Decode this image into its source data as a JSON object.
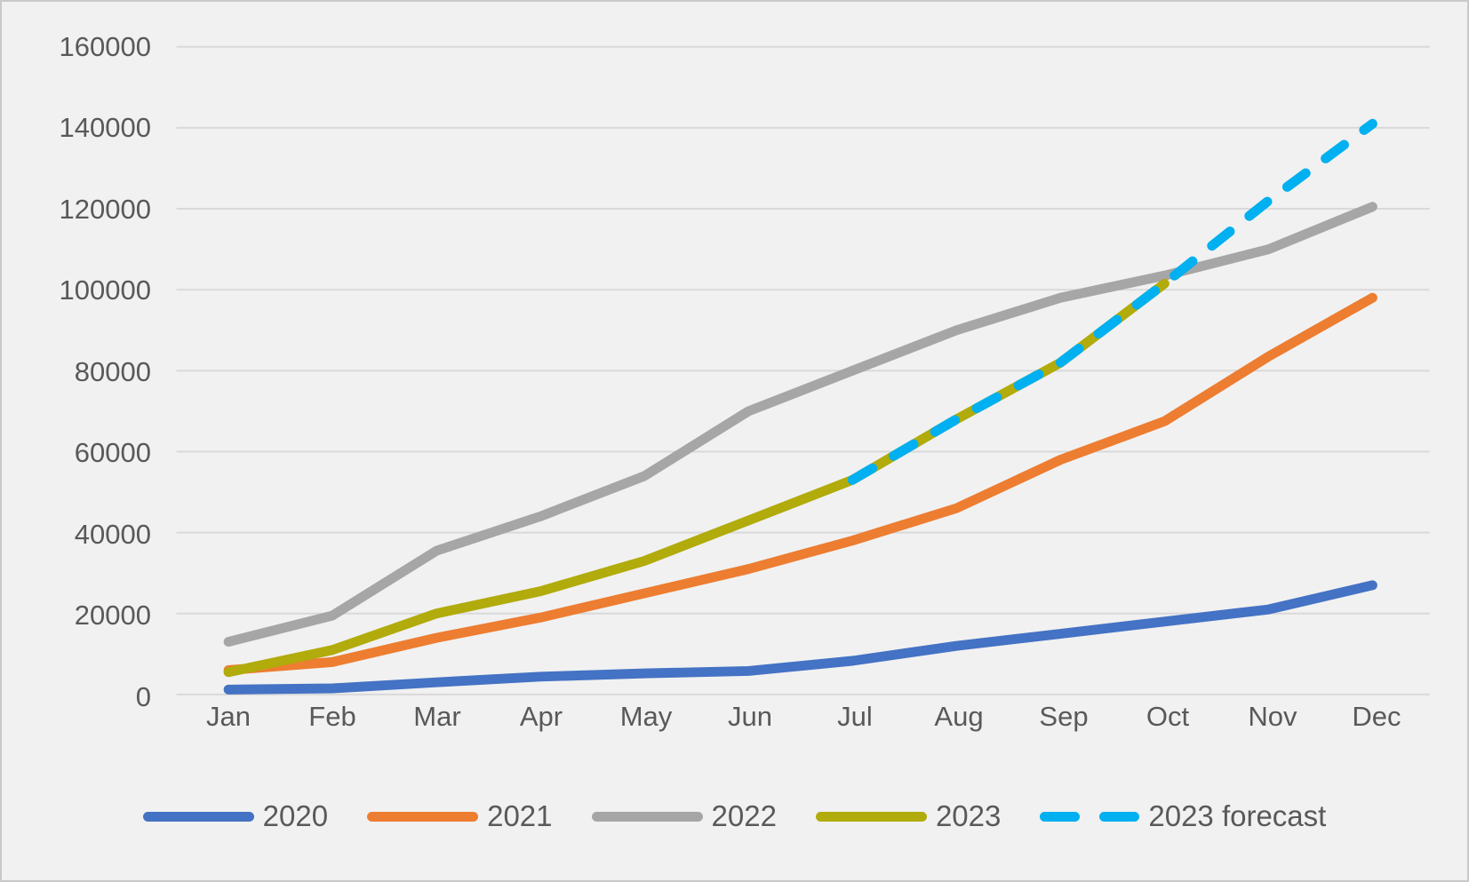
{
  "colors": {
    "background": "#F1F1F1",
    "frame_border": "#C9C9C9",
    "gridline": "#D9D9D9",
    "tick_text": "#595959"
  },
  "chart_data": {
    "type": "line",
    "title": "",
    "xlabel": "",
    "ylabel": "",
    "grid": true,
    "legend_position": "bottom",
    "ylim": [
      0,
      160000
    ],
    "y_tick_step": 20000,
    "y_ticks": [
      "160000",
      "140000",
      "120000",
      "100000",
      "80000",
      "60000",
      "40000",
      "20000",
      "0"
    ],
    "x": [
      "Jan",
      "Feb",
      "Mar",
      "Apr",
      "May",
      "Jun",
      "Jul",
      "Aug",
      "Sep",
      "Oct",
      "Nov",
      "Dec"
    ],
    "series": [
      {
        "name": "2020",
        "color": "#4472C4",
        "style": "solid",
        "values": [
          1200,
          1500,
          3000,
          4400,
          5200,
          5800,
          8300,
          12000,
          15000,
          18000,
          21000,
          27000
        ]
      },
      {
        "name": "2021",
        "color": "#ED7D31",
        "style": "solid",
        "values": [
          6000,
          8000,
          14000,
          19000,
          25000,
          31000,
          38000,
          46000,
          58000,
          67500,
          83500,
          98000
        ]
      },
      {
        "name": "2022",
        "color": "#A6A6A6",
        "style": "solid",
        "values": [
          13000,
          19500,
          35500,
          44000,
          54000,
          70000,
          80000,
          90000,
          98000,
          103500,
          110000,
          120500
        ]
      },
      {
        "name": "2023",
        "color": "#B1AB0B",
        "style": "solid",
        "values": [
          5500,
          11000,
          20000,
          25500,
          33000,
          43000,
          53000,
          68000,
          82000,
          101500,
          null,
          null
        ]
      },
      {
        "name": "2023 forecast",
        "color": "#00B0F0",
        "style": "dashed",
        "values": [
          null,
          null,
          null,
          null,
          null,
          null,
          53000,
          68000,
          82000,
          101500,
          122000,
          141000
        ]
      }
    ]
  }
}
